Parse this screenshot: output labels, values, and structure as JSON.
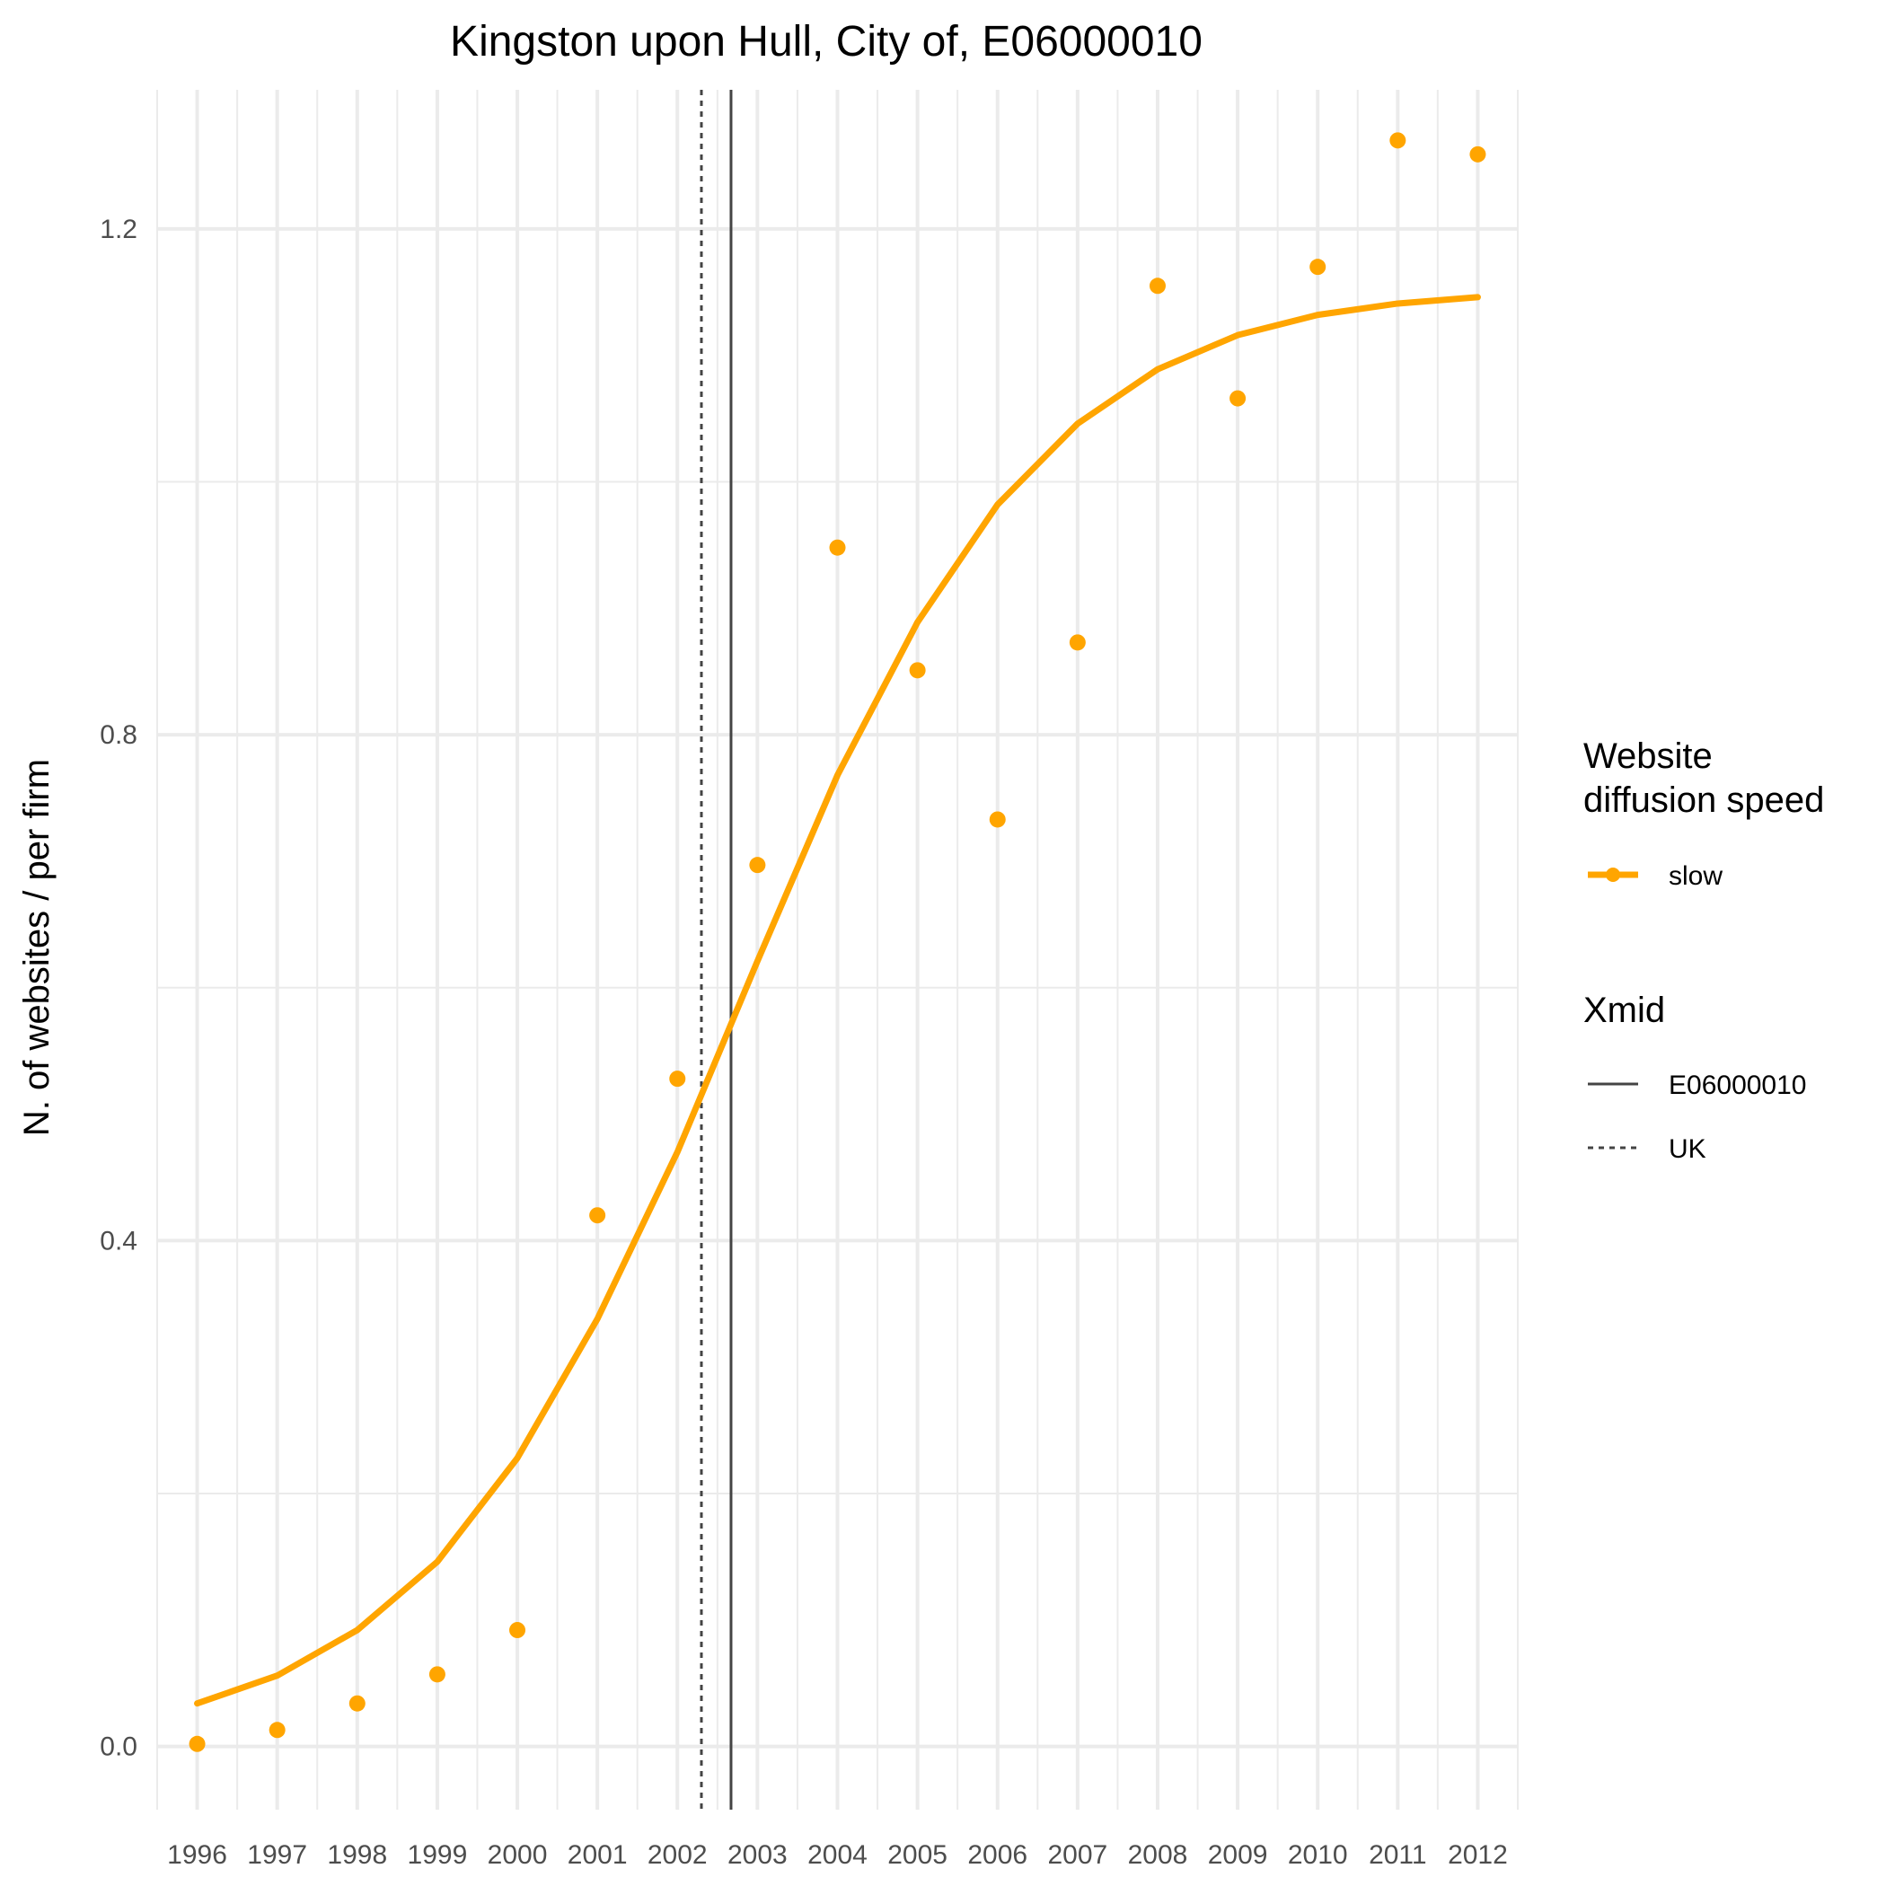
{
  "chart_data": {
    "type": "line",
    "title": "Kingston upon Hull, City of, E06000010",
    "xlabel": "",
    "ylabel": "N. of websites / per firm",
    "x": [
      1996,
      1997,
      1998,
      1999,
      2000,
      2001,
      2002,
      2003,
      2004,
      2005,
      2006,
      2007,
      2008,
      2009,
      2010,
      2011,
      2012
    ],
    "x_tick_labels": [
      "1996",
      "1997",
      "1998",
      "1999",
      "2000",
      "2001",
      "2002",
      "2003",
      "2004",
      "2005",
      "2006",
      "2007",
      "2008",
      "2009",
      "2010",
      "2011",
      "2012"
    ],
    "y_ticks": [
      0.0,
      0.4,
      0.8,
      1.2
    ],
    "y_tick_labels": [
      "0.0",
      "0.4",
      "0.8",
      "1.2"
    ],
    "xlim": [
      1995.5,
      2012.5
    ],
    "ylim": [
      -0.05,
      1.31
    ],
    "grid": true,
    "series": [
      {
        "name": "slow",
        "color": "#FFA500",
        "points": [
          0.002,
          0.013,
          0.034,
          0.057,
          0.092,
          0.42,
          0.528,
          0.697,
          0.948,
          0.851,
          0.733,
          0.873,
          1.155,
          1.066,
          1.17,
          1.27,
          1.259
        ],
        "fitted": [
          0.034,
          0.056,
          0.092,
          0.146,
          0.228,
          0.338,
          0.47,
          0.621,
          0.768,
          0.889,
          0.982,
          1.046,
          1.089,
          1.116,
          1.132,
          1.141,
          1.146
        ]
      }
    ],
    "vlines": [
      {
        "name": "E06000010",
        "x": 2002.67,
        "style": "solid",
        "color": "#444444"
      },
      {
        "name": "UK",
        "x": 2002.3,
        "style": "dotted",
        "color": "#444444"
      }
    ],
    "legend_position": "right",
    "legend": {
      "speed_title_line1": "Website",
      "speed_title_line2": "diffusion speed",
      "speed_item": "slow",
      "xmid_title": "Xmid",
      "xmid_items": [
        "E06000010",
        "UK"
      ]
    }
  }
}
